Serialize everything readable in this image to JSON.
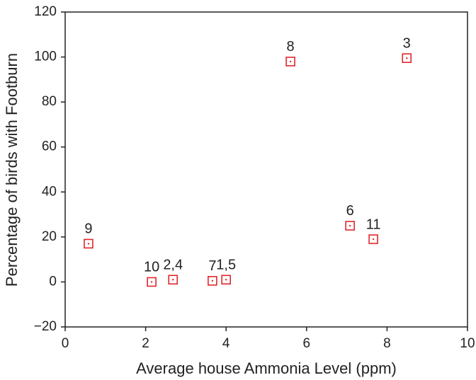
{
  "chart_data": {
    "type": "scatter",
    "x_label": "Average house Ammonia Level (ppm)",
    "y_label": "Percentage of birds with Footburn",
    "x": [
      0.58,
      2.15,
      2.68,
      3.66,
      4.0,
      5.6,
      8.49,
      7.08,
      7.66
    ],
    "values": [
      17,
      0,
      1,
      0.5,
      1,
      98,
      99.5,
      25,
      19
    ],
    "point_labels": [
      "9",
      "10",
      "2,4",
      "7",
      "1,5",
      "8",
      "3",
      "6",
      "11"
    ],
    "color": "#e0262b",
    "xlim": [
      0,
      10
    ],
    "xticks": [
      0,
      2,
      4,
      6,
      8,
      10
    ],
    "ylim": [
      -20,
      120
    ],
    "yticks": [
      {
        "value": -20,
        "label": "−20"
      },
      0,
      20,
      40,
      60,
      80,
      100,
      120
    ]
  }
}
